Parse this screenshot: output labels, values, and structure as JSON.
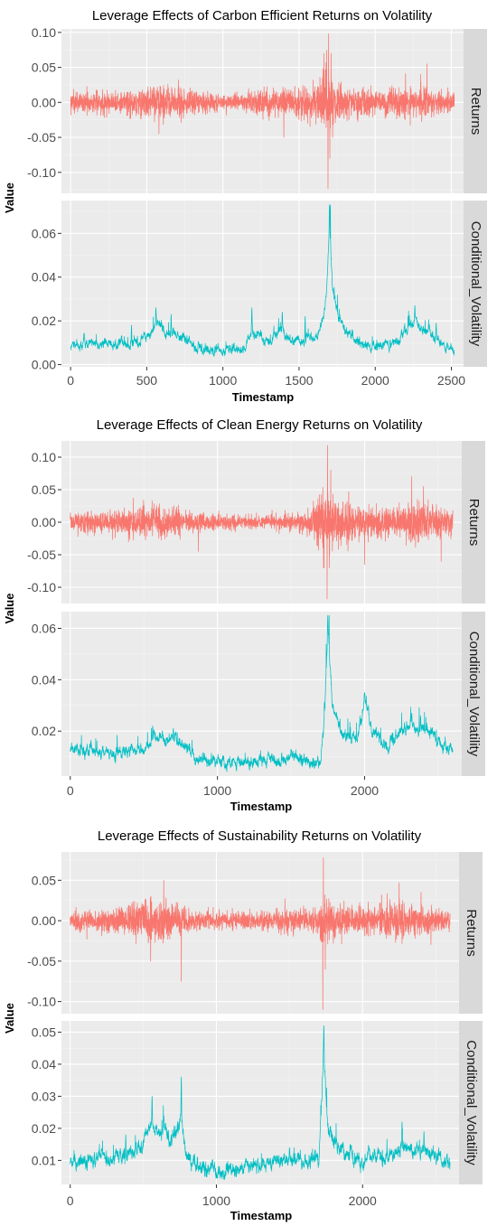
{
  "colors": {
    "returns": "#F8766D",
    "volatility": "#00BFC4",
    "panel": "#EBEBEB",
    "strip": "#D9D9D9"
  },
  "chart_data": [
    {
      "type": "line",
      "title": "Leverage Effects of Carbon Efficient Returns on Volatility",
      "xlabel": "Timestamp",
      "ylabel": "Value",
      "grid": true,
      "xlim": [
        -60,
        2580
      ],
      "x_ticks": [
        0,
        500,
        1000,
        1500,
        2000,
        2500
      ],
      "n_points": 2520,
      "facets": [
        {
          "strip": "Returns",
          "ylim": [
            -0.13,
            0.105
          ],
          "y_ticks": [
            0.1,
            0.05,
            0.0,
            -0.05,
            -0.1
          ],
          "y_tick_labels": [
            "0.10",
            "0.05",
            "0.00",
            "-0.05",
            "-0.10"
          ],
          "series": {
            "kind": "returns",
            "mean": 0.0,
            "min": -0.123,
            "max": 0.098,
            "amplitude_envelope": [
              [
                0,
                0.013
              ],
              [
                150,
                0.014
              ],
              [
                400,
                0.018
              ],
              [
                600,
                0.022
              ],
              [
                800,
                0.015
              ],
              [
                1000,
                0.01
              ],
              [
                1150,
                0.011
              ],
              [
                1250,
                0.02
              ],
              [
                1400,
                0.016
              ],
              [
                1600,
                0.022
              ],
              [
                1680,
                0.05
              ],
              [
                1720,
                0.03
              ],
              [
                1800,
                0.022
              ],
              [
                2000,
                0.014
              ],
              [
                2200,
                0.02
              ],
              [
                2350,
                0.022
              ],
              [
                2520,
                0.012
              ]
            ],
            "extremes": [
              [
                1690,
                -0.123
              ],
              [
                1694,
                0.098
              ],
              [
                1702,
                -0.08
              ],
              [
                1710,
                0.07
              ],
              [
                1720,
                -0.05
              ],
              [
                2340,
                0.055
              ],
              [
                1400,
                -0.05
              ],
              [
                580,
                -0.045
              ]
            ]
          }
        },
        {
          "strip": "Conditional_Volatility",
          "ylim": [
            -0.001,
            0.075
          ],
          "y_ticks": [
            0.06,
            0.04,
            0.02,
            0.0
          ],
          "y_tick_labels": [
            "0.06",
            "0.04",
            "0.02",
            "0.00"
          ],
          "series": {
            "kind": "volatility",
            "min": 0.003,
            "max": 0.073,
            "baseline": [
              [
                0,
                0.009
              ],
              [
                200,
                0.01
              ],
              [
                400,
                0.01
              ],
              [
                520,
                0.013
              ],
              [
                560,
                0.02
              ],
              [
                620,
                0.015
              ],
              [
                700,
                0.014
              ],
              [
                850,
                0.007
              ],
              [
                1000,
                0.006
              ],
              [
                1150,
                0.007
              ],
              [
                1180,
                0.015
              ],
              [
                1250,
                0.012
              ],
              [
                1320,
                0.012
              ],
              [
                1380,
                0.016
              ],
              [
                1450,
                0.01
              ],
              [
                1550,
                0.012
              ],
              [
                1620,
                0.012
              ],
              [
                1680,
                0.03
              ],
              [
                1700,
                0.065
              ],
              [
                1720,
                0.035
              ],
              [
                1760,
                0.022
              ],
              [
                1820,
                0.015
              ],
              [
                1900,
                0.01
              ],
              [
                2050,
                0.008
              ],
              [
                2150,
                0.012
              ],
              [
                2250,
                0.02
              ],
              [
                2300,
                0.018
              ],
              [
                2400,
                0.012
              ],
              [
                2520,
                0.006
              ]
            ],
            "peaks": [
              [
                1700,
                0.073
              ],
              [
                560,
                0.026
              ],
              [
                660,
                0.023
              ],
              [
                1190,
                0.026
              ],
              [
                1390,
                0.024
              ],
              [
                1540,
                0.022
              ],
              [
                2260,
                0.027
              ],
              [
                2400,
                0.019
              ],
              [
                400,
                0.018
              ]
            ]
          }
        }
      ]
    },
    {
      "type": "line",
      "title": "Leverage Effects of Clean Energy Returns on Volatility",
      "xlabel": "Timestamp",
      "ylabel": "Value",
      "grid": true,
      "xlim": [
        -60,
        2660
      ],
      "x_ticks": [
        0,
        1000,
        2000
      ],
      "n_points": 2600,
      "facets": [
        {
          "strip": "Returns",
          "ylim": [
            -0.125,
            0.125
          ],
          "y_ticks": [
            0.1,
            0.05,
            0.0,
            -0.05,
            -0.1
          ],
          "y_tick_labels": [
            "0.10",
            "0.05",
            "0.00",
            "-0.05",
            "-0.10"
          ],
          "series": {
            "kind": "returns",
            "mean": 0.0,
            "min": -0.118,
            "max": 0.118,
            "amplitude_envelope": [
              [
                0,
                0.012
              ],
              [
                300,
                0.017
              ],
              [
                600,
                0.024
              ],
              [
                800,
                0.016
              ],
              [
                1000,
                0.01
              ],
              [
                1300,
                0.009
              ],
              [
                1600,
                0.012
              ],
              [
                1720,
                0.05
              ],
              [
                1780,
                0.035
              ],
              [
                1900,
                0.028
              ],
              [
                2000,
                0.022
              ],
              [
                2200,
                0.02
              ],
              [
                2350,
                0.028
              ],
              [
                2500,
                0.022
              ],
              [
                2600,
                0.016
              ]
            ],
            "extremes": [
              [
                1745,
                -0.118
              ],
              [
                1748,
                0.118
              ],
              [
                1760,
                -0.07
              ],
              [
                1770,
                0.08
              ],
              [
                2000,
                -0.065
              ],
              [
                2320,
                0.07
              ],
              [
                2400,
                0.055
              ],
              [
                870,
                -0.045
              ],
              [
                2520,
                -0.06
              ]
            ]
          }
        },
        {
          "strip": "Conditional_Volatility",
          "ylim": [
            0.0025,
            0.0665
          ],
          "y_ticks": [
            0.06,
            0.04,
            0.02
          ],
          "y_tick_labels": [
            "0.06",
            "0.04",
            "0.02"
          ],
          "series": {
            "kind": "volatility",
            "min": 0.004,
            "max": 0.065,
            "baseline": [
              [
                0,
                0.013
              ],
              [
                200,
                0.012
              ],
              [
                400,
                0.012
              ],
              [
                520,
                0.014
              ],
              [
                580,
                0.018
              ],
              [
                650,
                0.016
              ],
              [
                700,
                0.017
              ],
              [
                850,
                0.01
              ],
              [
                1000,
                0.008
              ],
              [
                1200,
                0.008
              ],
              [
                1400,
                0.009
              ],
              [
                1500,
                0.011
              ],
              [
                1600,
                0.008
              ],
              [
                1700,
                0.007
              ],
              [
                1730,
                0.03
              ],
              [
                1750,
                0.06
              ],
              [
                1780,
                0.03
              ],
              [
                1850,
                0.018
              ],
              [
                1950,
                0.018
              ],
              [
                2000,
                0.032
              ],
              [
                2050,
                0.02
              ],
              [
                2150,
                0.015
              ],
              [
                2300,
                0.022
              ],
              [
                2450,
                0.02
              ],
              [
                2550,
                0.012
              ],
              [
                2600,
                0.013
              ]
            ],
            "peaks": [
              [
                1750,
                0.065
              ],
              [
                1755,
                0.058
              ],
              [
                2000,
                0.035
              ],
              [
                2320,
                0.027
              ],
              [
                2380,
                0.026
              ],
              [
                560,
                0.022
              ],
              [
                700,
                0.021
              ],
              [
                1500,
                0.013
              ]
            ]
          }
        }
      ]
    },
    {
      "type": "line",
      "title": "Leverage Effects of Sustainability Returns on Volatility",
      "xlabel": "Timestamp",
      "ylabel": "Value",
      "grid": true,
      "xlim": [
        -60,
        2660
      ],
      "x_ticks": [
        0,
        1000,
        2000
      ],
      "n_points": 2600,
      "facets": [
        {
          "strip": "Returns",
          "ylim": [
            -0.115,
            0.085
          ],
          "y_ticks": [
            0.05,
            0.0,
            -0.05,
            -0.1
          ],
          "y_tick_labels": [
            "0.05",
            "0.00",
            "-0.05",
            "-0.10"
          ],
          "series": {
            "kind": "returns",
            "mean": 0.0,
            "min": -0.11,
            "max": 0.078,
            "amplitude_envelope": [
              [
                0,
                0.011
              ],
              [
                300,
                0.014
              ],
              [
                550,
                0.024
              ],
              [
                700,
                0.02
              ],
              [
                800,
                0.012
              ],
              [
                1000,
                0.009
              ],
              [
                1400,
                0.012
              ],
              [
                1700,
                0.014
              ],
              [
                1730,
                0.035
              ],
              [
                1780,
                0.022
              ],
              [
                2000,
                0.014
              ],
              [
                2250,
                0.02
              ],
              [
                2400,
                0.016
              ],
              [
                2600,
                0.012
              ]
            ],
            "extremes": [
              [
                1728,
                -0.11
              ],
              [
                1732,
                0.078
              ],
              [
                760,
                -0.075
              ],
              [
                640,
                0.05
              ],
              [
                550,
                -0.05
              ],
              [
                2250,
                0.047
              ],
              [
                1745,
                -0.06
              ],
              [
                2400,
                0.035
              ]
            ]
          }
        },
        {
          "strip": "Conditional_Volatility",
          "ylim": [
            0.0025,
            0.0535
          ],
          "y_ticks": [
            0.05,
            0.04,
            0.03,
            0.02,
            0.01
          ],
          "y_tick_labels": [
            "0.05",
            "0.04",
            "0.03",
            "0.02",
            "0.01"
          ],
          "series": {
            "kind": "volatility",
            "min": 0.004,
            "max": 0.052,
            "baseline": [
              [
                0,
                0.009
              ],
              [
                200,
                0.01
              ],
              [
                400,
                0.011
              ],
              [
                500,
                0.015
              ],
              [
                550,
                0.022
              ],
              [
                600,
                0.018
              ],
              [
                650,
                0.02
              ],
              [
                700,
                0.015
              ],
              [
                760,
                0.024
              ],
              [
                800,
                0.01
              ],
              [
                1000,
                0.006
              ],
              [
                1200,
                0.008
              ],
              [
                1400,
                0.01
              ],
              [
                1600,
                0.009
              ],
              [
                1700,
                0.01
              ],
              [
                1720,
                0.03
              ],
              [
                1735,
                0.045
              ],
              [
                1760,
                0.02
              ],
              [
                1850,
                0.013
              ],
              [
                2000,
                0.01
              ],
              [
                2200,
                0.012
              ],
              [
                2300,
                0.014
              ],
              [
                2450,
                0.012
              ],
              [
                2600,
                0.009
              ]
            ],
            "peaks": [
              [
                1735,
                0.052
              ],
              [
                760,
                0.036
              ],
              [
                560,
                0.03
              ],
              [
                640,
                0.024
              ],
              [
                2270,
                0.022
              ],
              [
                2420,
                0.019
              ],
              [
                380,
                0.018
              ],
              [
                1500,
                0.014
              ]
            ]
          }
        }
      ]
    }
  ]
}
